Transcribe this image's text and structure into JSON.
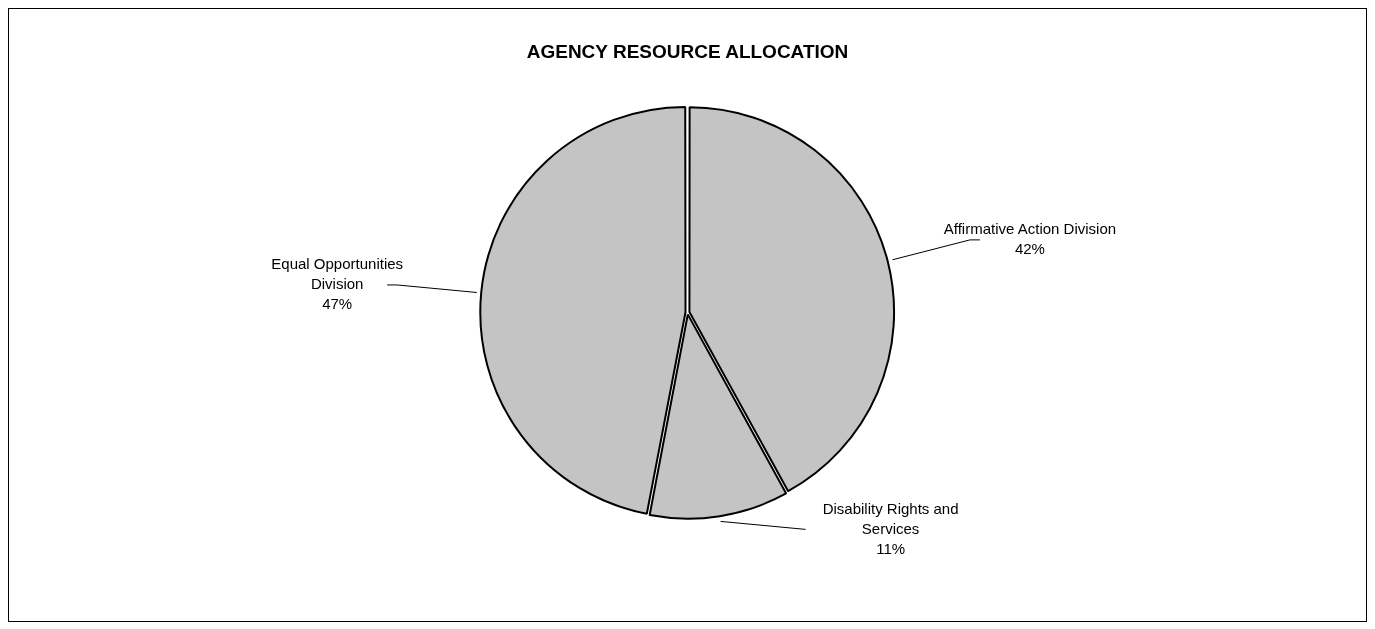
{
  "chart_data": {
    "type": "pie",
    "title": "AGENCY RESOURCE ALLOCATION",
    "categories": [
      "Affirmative Action Division",
      "Disability Rights and Services",
      "Equal Opportunities Division"
    ],
    "values": [
      42,
      11,
      47
    ],
    "colors": [
      "#c4c4c4",
      "#c4c4c4",
      "#c4c4c4"
    ],
    "value_labels": [
      "42%",
      "11%",
      "47%"
    ],
    "legend": false
  }
}
